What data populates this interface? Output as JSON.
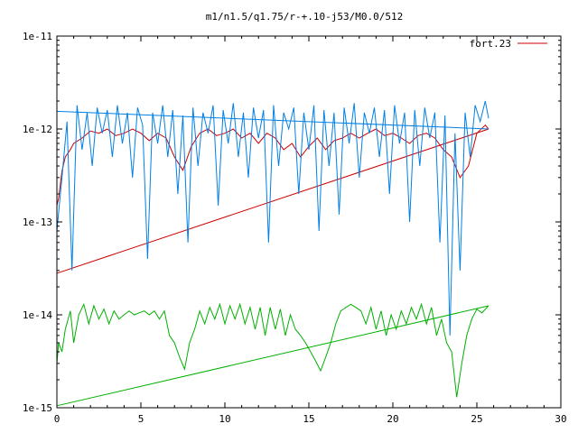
{
  "chart_data": {
    "type": "line",
    "title": "m1/n1.5/q1.75/r-+.10-j53/M0.0/512",
    "xlabel": "",
    "ylabel": "",
    "xlim": [
      0,
      30
    ],
    "ylim": [
      1e-15,
      1e-11
    ],
    "yscale": "log",
    "grid": false,
    "legend": {
      "position": "top-right",
      "entries": [
        "fort.23"
      ]
    },
    "x_ticks": [
      0,
      5,
      10,
      15,
      20,
      25,
      30
    ],
    "x_tick_labels": [
      "0",
      "5",
      "10",
      "15",
      "20",
      "25",
      "30"
    ],
    "y_ticks": [
      1e-15,
      1e-14,
      1e-13,
      1e-12,
      1e-11
    ],
    "y_tick_labels": [
      "1e-15",
      "1e-14",
      "1e-13",
      "1e-12",
      "1e-11"
    ],
    "series": [
      {
        "name": "fort.23",
        "color": "#cc0000",
        "trend_line": {
          "x": [
            0,
            25.7
          ],
          "y": [
            2.8e-14,
            1e-12
          ]
        },
        "x": [
          0.0,
          0.1,
          0.3,
          0.5,
          0.8,
          1.0,
          1.5,
          2.0,
          2.5,
          3.0,
          3.5,
          4.0,
          4.5,
          5.0,
          5.5,
          6.0,
          6.5,
          7.0,
          7.5,
          8.0,
          8.5,
          9.0,
          9.5,
          10.0,
          10.5,
          11.0,
          11.5,
          12.0,
          12.5,
          13.0,
          13.5,
          14.0,
          14.5,
          15.0,
          15.5,
          16.0,
          16.5,
          17.0,
          17.5,
          18.0,
          18.5,
          19.0,
          19.5,
          20.0,
          20.5,
          21.0,
          21.5,
          22.0,
          22.5,
          23.0,
          23.5,
          24.0,
          24.5,
          25.0,
          25.5,
          25.7
        ],
        "y": [
          1.5e-13,
          1.8e-13,
          3.5e-13,
          5e-13,
          6e-13,
          7e-13,
          8e-13,
          9.5e-13,
          9e-13,
          1e-12,
          8.5e-13,
          9e-13,
          1e-12,
          9e-13,
          7.5e-13,
          9e-13,
          8e-13,
          5e-13,
          3.6e-13,
          6.5e-13,
          9e-13,
          1e-12,
          8.5e-13,
          9e-13,
          1e-12,
          8e-13,
          9e-13,
          7e-13,
          9e-13,
          8e-13,
          6e-13,
          7e-13,
          5e-13,
          6.5e-13,
          8e-13,
          6e-13,
          7.5e-13,
          8e-13,
          9e-13,
          8e-13,
          9e-13,
          1e-12,
          8.5e-13,
          9e-13,
          8e-13,
          7e-13,
          8.5e-13,
          9e-13,
          8e-13,
          6e-13,
          5e-13,
          3e-13,
          4e-13,
          9e-13,
          1.1e-12,
          1e-12
        ]
      },
      {
        "name": "",
        "color": "#0080e6",
        "trend_line": {
          "x": [
            0,
            25.7
          ],
          "y": [
            1.55e-12,
            1e-12
          ]
        },
        "x": [
          0.0,
          0.3,
          0.6,
          0.9,
          1.2,
          1.5,
          1.8,
          2.1,
          2.4,
          2.7,
          3.0,
          3.3,
          3.6,
          3.9,
          4.2,
          4.5,
          4.8,
          5.1,
          5.4,
          5.7,
          6.0,
          6.3,
          6.6,
          6.9,
          7.2,
          7.5,
          7.8,
          8.1,
          8.4,
          8.7,
          9.0,
          9.3,
          9.6,
          9.9,
          10.2,
          10.5,
          10.8,
          11.1,
          11.4,
          11.7,
          12.0,
          12.3,
          12.6,
          12.9,
          13.2,
          13.5,
          13.8,
          14.1,
          14.4,
          14.7,
          15.0,
          15.3,
          15.6,
          15.9,
          16.2,
          16.5,
          16.8,
          17.1,
          17.4,
          17.7,
          18.0,
          18.3,
          18.6,
          18.9,
          19.2,
          19.5,
          19.8,
          20.1,
          20.4,
          20.7,
          21.0,
          21.3,
          21.6,
          21.9,
          22.2,
          22.5,
          22.8,
          23.1,
          23.4,
          23.7,
          24.0,
          24.3,
          24.6,
          24.9,
          25.2,
          25.5,
          25.7
        ],
        "y": [
          8e-14,
          3e-13,
          1.2e-12,
          3e-14,
          1.8e-12,
          6e-13,
          1.5e-12,
          4e-13,
          1.7e-12,
          9e-13,
          1.6e-12,
          5e-13,
          1.8e-12,
          7e-13,
          1.5e-12,
          3e-13,
          1.7e-12,
          1.1e-12,
          4e-14,
          1.5e-12,
          7e-13,
          1.8e-12,
          5e-13,
          1.6e-12,
          2e-13,
          1.4e-12,
          6e-14,
          1.7e-12,
          4e-13,
          1.5e-12,
          9e-13,
          1.8e-12,
          1.5e-13,
          1.6e-12,
          7e-13,
          1.9e-12,
          5e-13,
          1.5e-12,
          3e-13,
          1.7e-12,
          8e-13,
          1.6e-12,
          6e-14,
          1.8e-12,
          4e-13,
          1.5e-12,
          1e-12,
          1.7e-12,
          2e-13,
          1.5e-12,
          6e-13,
          1.8e-12,
          8e-14,
          1.6e-12,
          4e-13,
          1.5e-12,
          1.2e-13,
          1.7e-12,
          7e-13,
          1.9e-12,
          3e-13,
          1.5e-12,
          9e-13,
          1.7e-12,
          5e-13,
          1.6e-12,
          2e-13,
          1.8e-12,
          7e-13,
          1.5e-12,
          1e-13,
          1.6e-12,
          4e-13,
          1.7e-12,
          8e-13,
          1.5e-12,
          6e-14,
          1.4e-12,
          6e-15,
          9e-13,
          3e-14,
          1.5e-12,
          5e-13,
          1.8e-12,
          1.2e-12,
          2e-12,
          1.3e-12
        ]
      },
      {
        "name": "",
        "color": "#00b000",
        "trend_line": {
          "x": [
            0,
            25.7
          ],
          "y": [
            1.05e-15,
            1.25e-14
          ]
        },
        "x": [
          0.0,
          0.1,
          0.3,
          0.5,
          0.8,
          1.0,
          1.3,
          1.6,
          1.9,
          2.2,
          2.5,
          2.8,
          3.1,
          3.4,
          3.7,
          4.0,
          4.3,
          4.6,
          4.9,
          5.2,
          5.5,
          5.8,
          6.1,
          6.4,
          6.7,
          7.0,
          7.3,
          7.6,
          7.9,
          8.2,
          8.5,
          8.8,
          9.1,
          9.4,
          9.7,
          10.0,
          10.3,
          10.6,
          10.9,
          11.2,
          11.5,
          11.8,
          12.1,
          12.4,
          12.7,
          13.0,
          13.3,
          13.6,
          13.9,
          14.2,
          14.5,
          14.8,
          15.1,
          15.4,
          15.7,
          16.0,
          16.3,
          16.6,
          16.9,
          17.2,
          17.5,
          17.8,
          18.1,
          18.4,
          18.7,
          19.0,
          19.3,
          19.6,
          19.9,
          20.2,
          20.5,
          20.8,
          21.1,
          21.4,
          21.7,
          22.0,
          22.3,
          22.6,
          22.9,
          23.2,
          23.5,
          23.8,
          24.1,
          24.4,
          24.7,
          25.0,
          25.3,
          25.7
        ],
        "y": [
          3e-15,
          5e-15,
          4e-15,
          7e-15,
          1.1e-14,
          5e-15,
          1e-14,
          1.3e-14,
          8e-15,
          1.25e-14,
          9e-15,
          1.15e-14,
          8e-15,
          1.1e-14,
          9e-15,
          1e-14,
          1.1e-14,
          1e-14,
          1.05e-14,
          1.1e-14,
          1e-14,
          1.1e-14,
          9e-15,
          1.1e-14,
          6e-15,
          5e-15,
          3.5e-15,
          2.6e-15,
          5e-15,
          7e-15,
          1.1e-14,
          8e-15,
          1.2e-14,
          9e-15,
          1.3e-14,
          8e-15,
          1.25e-14,
          9e-15,
          1.3e-14,
          8e-15,
          1.2e-14,
          7e-15,
          1.2e-14,
          6e-15,
          1.2e-14,
          7e-15,
          1.15e-14,
          6e-15,
          1e-14,
          7e-15,
          6e-15,
          5e-15,
          4e-15,
          3.2e-15,
          2.5e-15,
          3.5e-15,
          5e-15,
          8e-15,
          1.1e-14,
          1.2e-14,
          1.3e-14,
          1.2e-14,
          1.1e-14,
          8e-15,
          1.2e-14,
          7e-15,
          1.1e-14,
          6e-15,
          1e-14,
          7e-15,
          1.1e-14,
          8e-15,
          1.2e-14,
          9e-15,
          1.3e-14,
          8e-15,
          1.2e-14,
          6e-15,
          9e-15,
          5e-15,
          4e-15,
          1.3e-15,
          3e-15,
          6e-15,
          9e-15,
          1.15e-14,
          1.05e-14,
          1.25e-14
        ]
      }
    ]
  }
}
